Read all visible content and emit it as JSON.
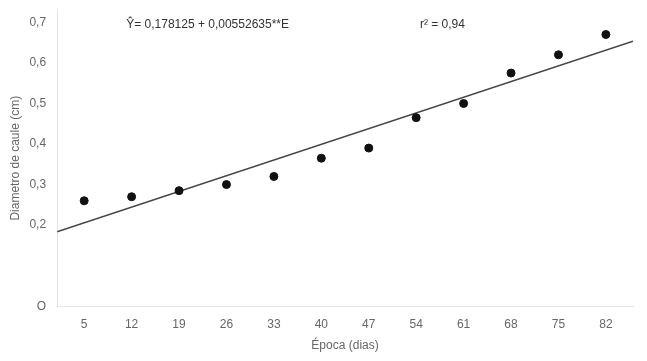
{
  "chart_data": {
    "type": "scatter",
    "xlabel": "Época (dias)",
    "ylabel": "Diametro de caule (cm)",
    "annotations": [
      "Ŷ= 0,178125 + 0,00552635**E",
      "r² = 0,94"
    ],
    "series": [
      {
        "type": "scatter",
        "color": "#111111",
        "x": [
          5,
          12,
          19,
          26,
          33,
          40,
          47,
          54,
          61,
          68,
          75,
          82
        ],
        "values": [
          0.26,
          0.27,
          0.285,
          0.3,
          0.32,
          0.365,
          0.39,
          0.465,
          0.5,
          0.575,
          0.62,
          0.67
        ]
      },
      {
        "type": "line",
        "color": "#444444",
        "x": [
          1,
          86
        ],
        "values": [
          0.18365135,
          0.6533911
        ]
      }
    ],
    "xlim": [
      1,
      86
    ],
    "xticks": [
      5,
      12,
      19,
      26,
      33,
      40,
      47,
      54,
      61,
      68,
      75,
      82
    ],
    "ylim": [
      0.0,
      0.73
    ],
    "yticks": [
      {
        "value": 0.0,
        "label": "O"
      },
      {
        "value": 0.2,
        "label": "0,2"
      },
      {
        "value": 0.3,
        "label": "0,3"
      },
      {
        "value": 0.4,
        "label": "0,4"
      },
      {
        "value": 0.5,
        "label": "0,5"
      },
      {
        "value": 0.6,
        "label": "0,6"
      },
      {
        "value": 0.7,
        "label": "0,7"
      }
    ],
    "grid": false
  }
}
